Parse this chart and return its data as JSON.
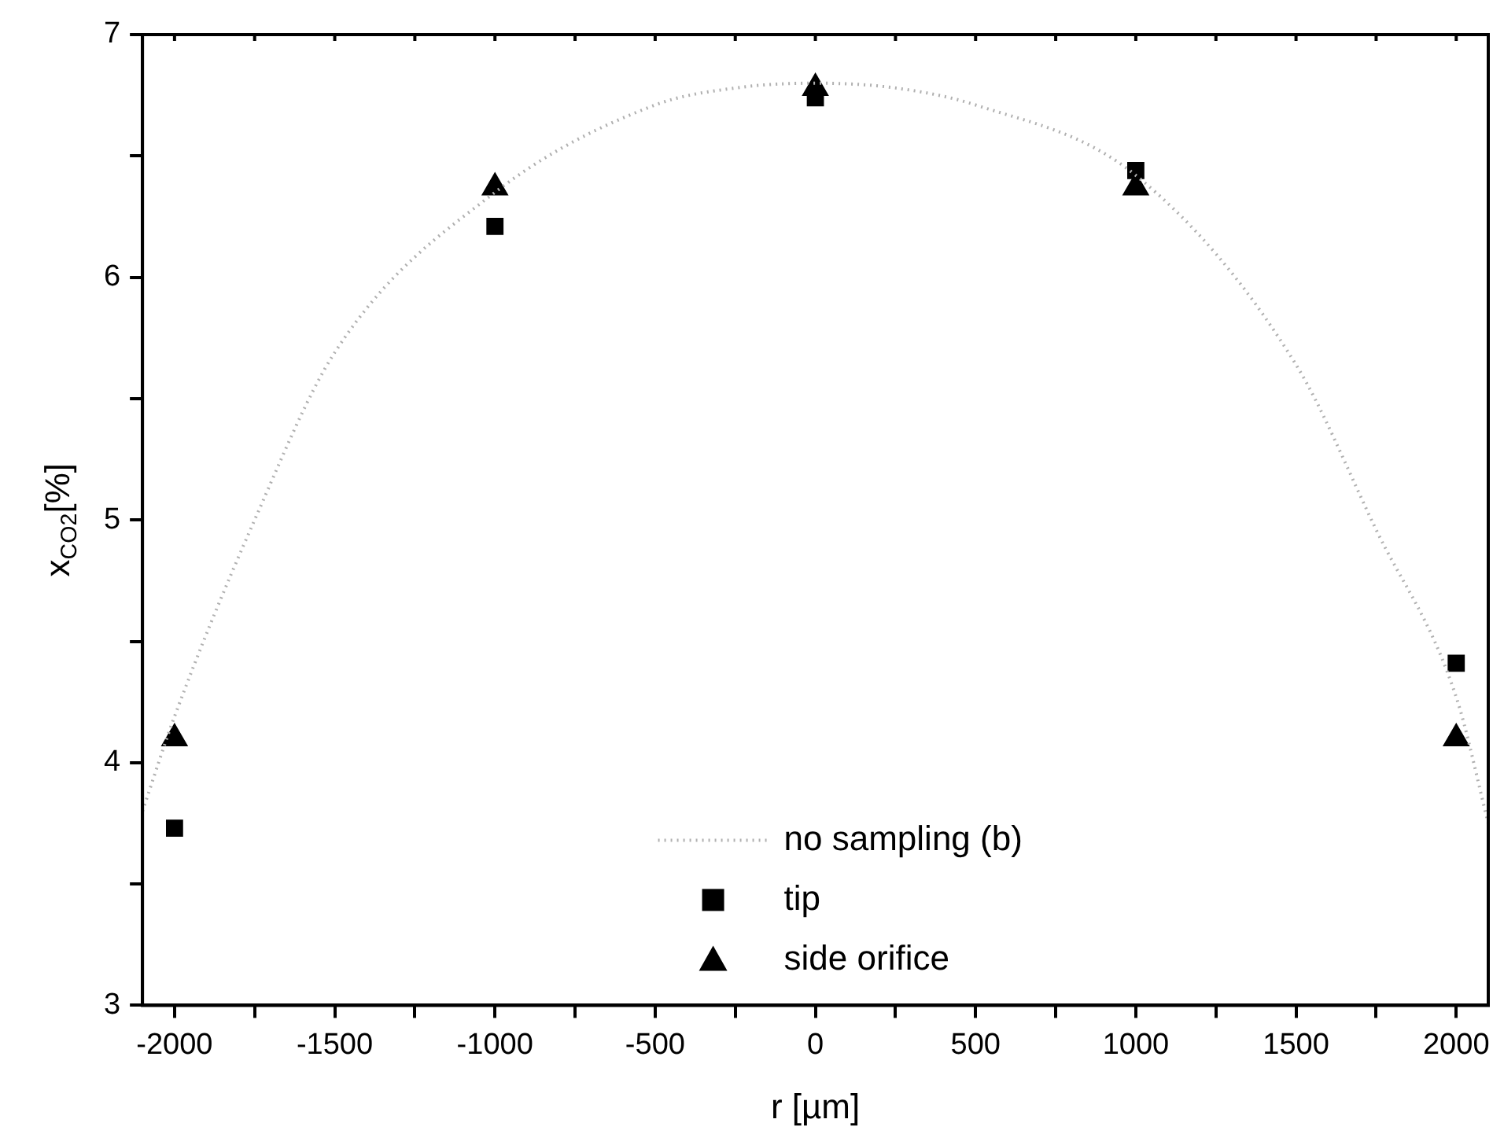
{
  "chart_data": {
    "type": "scatter",
    "xlabel": "r [µm]",
    "ylabel": "x$_{CO2}$[%]",
    "xlim": [
      -2100,
      2100
    ],
    "xticks": [
      -2000,
      {
        "value": -1750,
        "label": null
      },
      -1500,
      {
        "value": -1250,
        "label": null
      },
      -1000,
      {
        "value": -750,
        "label": null
      },
      -500,
      {
        "value": -250,
        "label": null
      },
      0,
      {
        "value": 250,
        "label": null
      },
      500,
      {
        "value": 750,
        "label": null
      },
      1000,
      {
        "value": 1250,
        "label": null
      },
      1500,
      {
        "value": 1750,
        "label": null
      },
      2000
    ],
    "ylim": [
      3,
      7
    ],
    "yticks": [
      3,
      {
        "value": 3.5,
        "label": null
      },
      4,
      {
        "value": 4.5,
        "label": null
      },
      5,
      {
        "value": 5.5,
        "label": null
      },
      6,
      {
        "value": 6.5,
        "label": null
      },
      7
    ],
    "grid": false,
    "legend": "bottom",
    "series": [
      {
        "name": "no sampling (b)",
        "type": "line",
        "color": "#b0b0b0",
        "marker": "none",
        "line_style": "dotted",
        "x": [
          -2100,
          -2000,
          -1750,
          -1500,
          -1000,
          -500,
          -250,
          0,
          250,
          500,
          1000,
          1500,
          1750,
          2000,
          2100
        ],
        "values": [
          3.8,
          4.19,
          5.0,
          5.69,
          6.35,
          6.71,
          6.78,
          6.8,
          6.78,
          6.71,
          6.42,
          5.64,
          4.96,
          4.27,
          3.75
        ]
      },
      {
        "name": "tip",
        "type": "scatter",
        "color": "#000000",
        "marker": "square",
        "x": [
          -2000,
          -1000,
          0,
          1000,
          2000
        ],
        "values": [
          3.73,
          6.21,
          6.74,
          6.44,
          4.41
        ]
      },
      {
        "name": "side orifice",
        "type": "scatter",
        "color": "#000000",
        "marker": "triangle",
        "x": [
          -2000,
          -1000,
          0,
          1000,
          2000
        ],
        "values": [
          4.1,
          6.37,
          6.78,
          6.37,
          4.1
        ]
      }
    ]
  }
}
